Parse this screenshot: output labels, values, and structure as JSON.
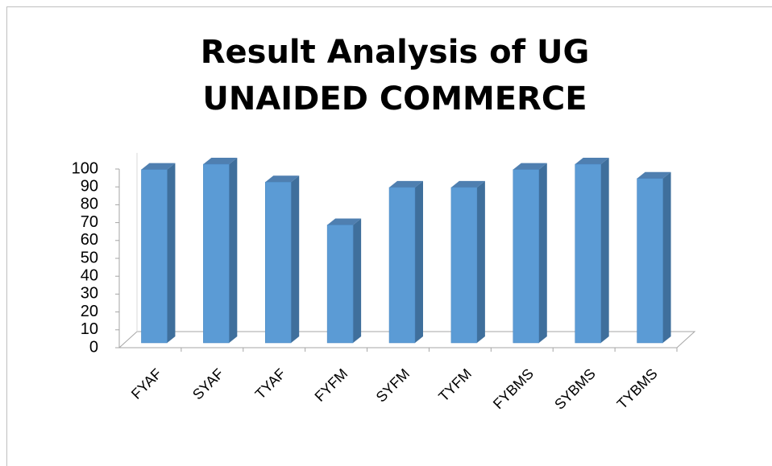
{
  "chart_data": {
    "type": "bar",
    "title": "Result Analysis of UG UNAIDED COMMERCE",
    "categories": [
      "FYAF",
      "SYAF",
      "TYAF",
      "FYFM",
      "SYFM",
      "TYFM",
      "FYBMS",
      "SYBMS",
      "TYBMS"
    ],
    "values": [
      97,
      100,
      90,
      66,
      87,
      87,
      97,
      100,
      92
    ],
    "color": "#5b9bd5",
    "ylim": [
      0,
      100
    ],
    "yticks": [
      0,
      10,
      20,
      30,
      40,
      50,
      60,
      70,
      80,
      90,
      100
    ]
  }
}
